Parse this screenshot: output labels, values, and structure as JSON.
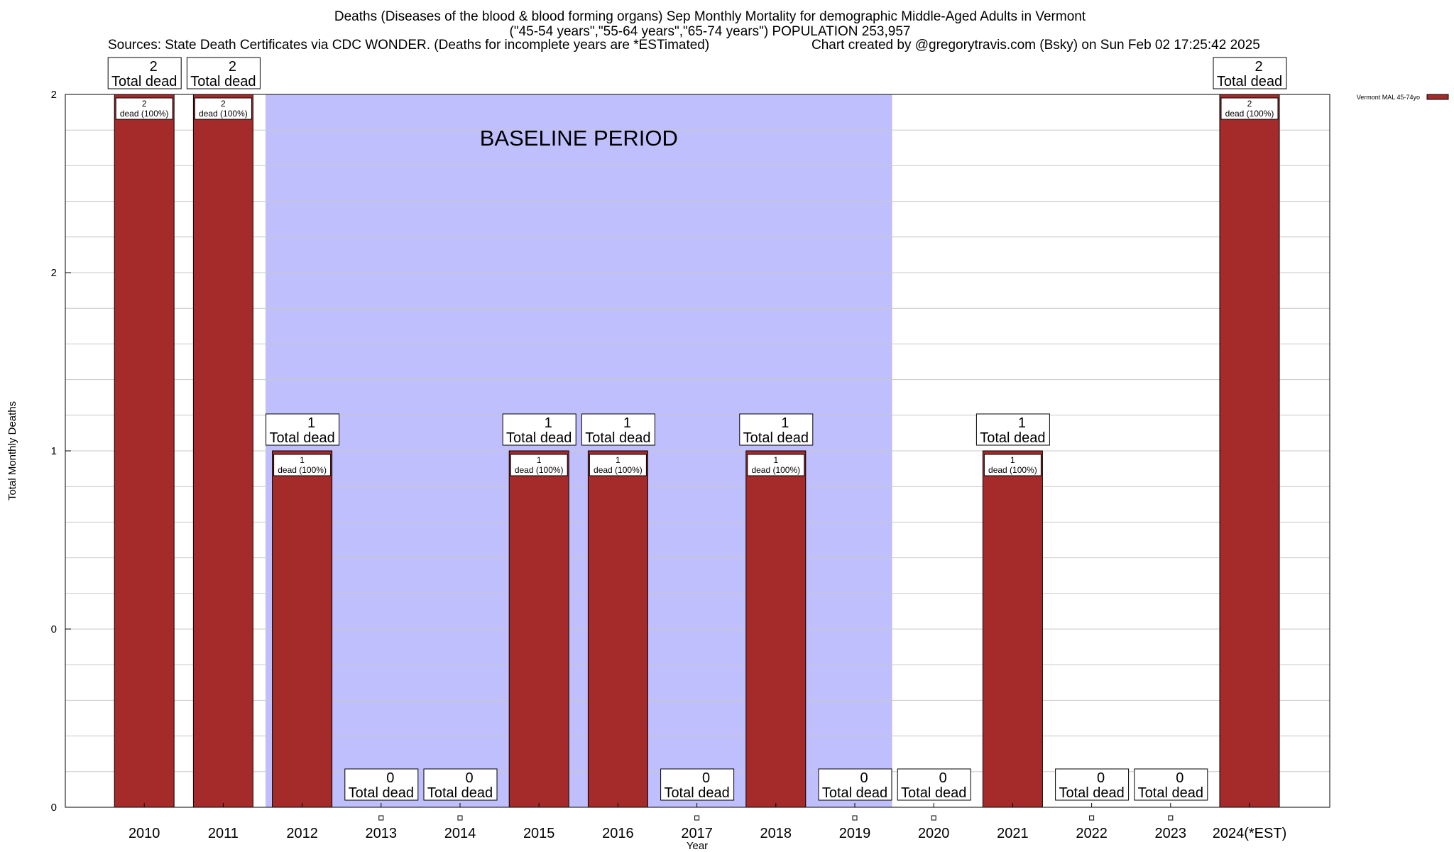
{
  "header": {
    "title_line1": "Deaths (Diseases of the blood & blood forming organs) Sep Monthly Mortality for demographic Middle-Aged Adults in Vermont",
    "title_line2": "(\"45-54 years\",\"55-64 years\",\"65-74 years\") POPULATION 253,957",
    "sources": "Sources: State Death Certificates via CDC WONDER. (Deaths for incomplete years are *ESTimated)",
    "credit": "Chart created by @gregorytravis.com (Bsky) on Sun Feb 02 17:25:42 2025"
  },
  "chart_data": {
    "type": "bar",
    "xlabel": "Year",
    "ylabel": "Total Monthly Deaths",
    "ylim": [
      0,
      2
    ],
    "yticks": [
      {
        "value": 0,
        "label": "0"
      },
      {
        "value": 0.5,
        "label": "0"
      },
      {
        "value": 1,
        "label": "1"
      },
      {
        "value": 1.5,
        "label": "2"
      },
      {
        "value": 2,
        "label": "2"
      }
    ],
    "minor_grid_step": 0.1,
    "grid": true,
    "categories": [
      "2010",
      "2011",
      "2012",
      "2013",
      "2014",
      "2015",
      "2016",
      "2017",
      "2018",
      "2019",
      "2020",
      "2021",
      "2022",
      "2023",
      "2024(*EST)"
    ],
    "series": [
      {
        "name": "Vermont MAL 45-74yo",
        "color": "#a52a2a",
        "values": [
          2,
          2,
          1,
          0,
          0,
          1,
          1,
          0,
          1,
          0,
          0,
          1,
          0,
          0,
          2
        ]
      }
    ],
    "bar_labels": [
      "2\ndead (100%)",
      "2\ndead (100%)",
      "1\ndead (100%)",
      "",
      "",
      "1\ndead (100%)",
      "1\ndead (100%)",
      "",
      "1\ndead (100%)",
      "",
      "",
      "1\ndead (100%)",
      "",
      "",
      "2\ndead (100%)"
    ],
    "total_labels": [
      "2",
      "2",
      "1",
      "0",
      "0",
      "1",
      "1",
      "0",
      "1",
      "0",
      "0",
      "1",
      "0",
      "0",
      "2"
    ],
    "total_suffix": "Total dead",
    "baseline": {
      "label": "BASELINE PERIOD",
      "from": "2012",
      "to": "2019",
      "color": "#bfbffd"
    },
    "legend": {
      "position": "top-right",
      "label": "Vermont MAL 45-74yo"
    }
  }
}
